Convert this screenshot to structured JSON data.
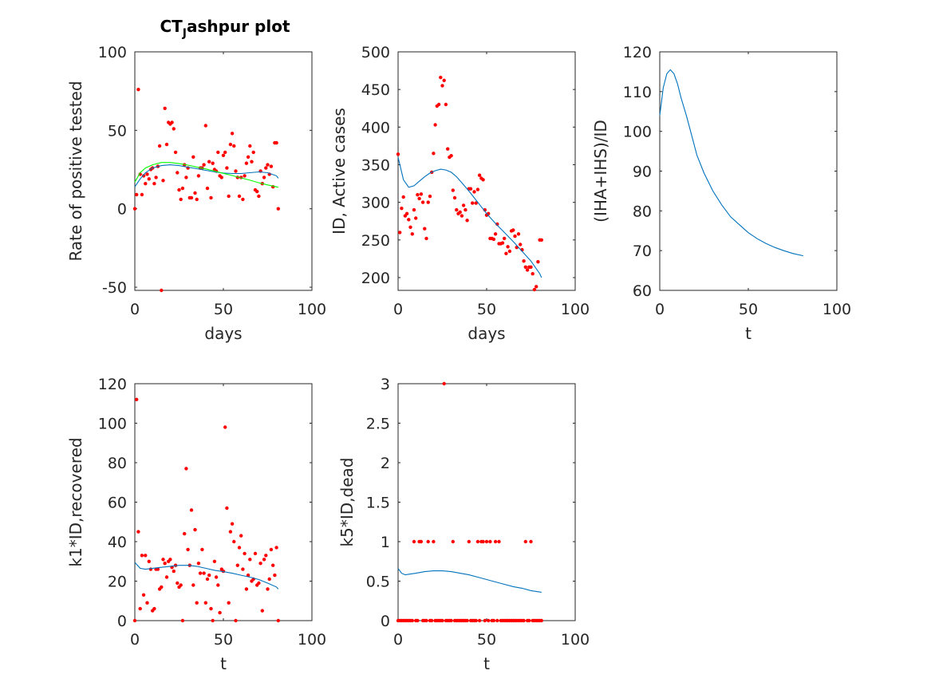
{
  "figure": {
    "title_main": "CT",
    "title_sub": "J",
    "title_rest": "ashpur plot"
  },
  "chart_data": [
    {
      "type": "scatter",
      "xlabel": "days",
      "ylabel": "Rate of positive tested",
      "xlim": [
        0,
        100
      ],
      "ylim": [
        -52,
        100
      ],
      "xticks": [
        "0",
        "50",
        "100"
      ],
      "yticks": [
        "-50",
        "0",
        "50",
        "100"
      ],
      "ytick_values": [
        -50,
        0,
        50,
        100
      ],
      "series": [
        {
          "kind": "points",
          "color": "#ff0000",
          "x": [
            0,
            1,
            2,
            3,
            4,
            5,
            6,
            7,
            8,
            9,
            10,
            11,
            12,
            13,
            14,
            15,
            16,
            17,
            18,
            19,
            20,
            21,
            22,
            23,
            24,
            25,
            26,
            27,
            28,
            29,
            30,
            31,
            32,
            33,
            34,
            35,
            36,
            37,
            38,
            39,
            40,
            41,
            42,
            43,
            44,
            45,
            46,
            47,
            48,
            49,
            50,
            51,
            52,
            53,
            54,
            55,
            56,
            57,
            58,
            59,
            60,
            61,
            62,
            63,
            64,
            65,
            66,
            67,
            68,
            69,
            70,
            71,
            72,
            73,
            74,
            75,
            76,
            77,
            78,
            79,
            80,
            81
          ],
          "y": [
            0,
            9,
            76,
            22,
            9,
            21,
            16,
            22,
            19,
            25,
            26,
            16,
            20,
            27,
            40,
            -52,
            18,
            64,
            41,
            55,
            54,
            55,
            51,
            36,
            23,
            12,
            6,
            13,
            28,
            20,
            26,
            7,
            7,
            33,
            10,
            6,
            21,
            26,
            26,
            28,
            53,
            13,
            30,
            7,
            29,
            25,
            24,
            36,
            21,
            20,
            34,
            36,
            26,
            8,
            41,
            48,
            40,
            24,
            20,
            8,
            20,
            6,
            21,
            29,
            33,
            40,
            30,
            36,
            12,
            11,
            8,
            24,
            16,
            20,
            26,
            28,
            22,
            27,
            14,
            42,
            42,
            0
          ]
        },
        {
          "kind": "line",
          "color": "#0072bd",
          "x": [
            0,
            3,
            6,
            10,
            15,
            20,
            25,
            30,
            35,
            40,
            45,
            50,
            55,
            60,
            65,
            70,
            75,
            80,
            81
          ],
          "y": [
            14,
            19,
            23,
            26,
            27.5,
            28,
            27.5,
            26.5,
            25.5,
            24.5,
            23.5,
            22.8,
            22.5,
            22.5,
            23,
            23.5,
            23,
            21,
            19.5
          ]
        },
        {
          "kind": "line",
          "color": "#00ff00",
          "x": [
            0,
            3,
            6,
            10,
            15,
            20,
            25,
            30,
            35,
            40,
            45,
            50,
            55,
            60,
            65,
            70,
            75,
            80,
            81
          ],
          "y": [
            17,
            23,
            26,
            28,
            29.5,
            29.5,
            28.8,
            27.8,
            26.6,
            25.4,
            24,
            22.6,
            21.2,
            19.7,
            18.2,
            16.6,
            15.2,
            14,
            13.7
          ]
        }
      ]
    },
    {
      "type": "scatter",
      "xlabel": "days",
      "ylabel": "ID, Active cases",
      "xlim": [
        0,
        100
      ],
      "ylim": [
        183,
        500
      ],
      "xticks": [
        "0",
        "50",
        "100"
      ],
      "yticks": [
        "200",
        "250",
        "300",
        "350",
        "400",
        "450",
        "500"
      ],
      "ytick_values": [
        200,
        250,
        300,
        350,
        400,
        450,
        500
      ],
      "series": [
        {
          "kind": "points",
          "color": "#ff0000",
          "x": [
            0,
            1,
            2,
            3,
            4,
            5,
            6,
            7,
            8,
            9,
            10,
            11,
            12,
            13,
            14,
            15,
            16,
            17,
            18,
            19,
            20,
            21,
            22,
            23,
            24,
            25,
            26,
            27,
            28,
            29,
            30,
            31,
            32,
            33,
            34,
            35,
            36,
            37,
            38,
            39,
            40,
            41,
            42,
            43,
            44,
            45,
            46,
            47,
            48,
            49,
            50,
            51,
            52,
            53,
            54,
            55,
            56,
            57,
            58,
            59,
            60,
            61,
            62,
            63,
            64,
            65,
            66,
            67,
            68,
            69,
            70,
            71,
            72,
            73,
            74,
            75,
            76,
            77,
            78,
            79,
            80,
            81
          ],
          "y": [
            364,
            260,
            292,
            307,
            282,
            285,
            277,
            267,
            258,
            290,
            279,
            310,
            305,
            311,
            300,
            265,
            252,
            300,
            308,
            340,
            365,
            403,
            428,
            430,
            466,
            455,
            462,
            430,
            371,
            360,
            362,
            316,
            306,
            290,
            285,
            287,
            282,
            296,
            290,
            276,
            318,
            318,
            299,
            314,
            299,
            317,
            336,
            332,
            330,
            290,
            283,
            285,
            252,
            252,
            251,
            258,
            271,
            245,
            245,
            246,
            252,
            232,
            241,
            235,
            262,
            263,
            255,
            240,
            258,
            244,
            237,
            222,
            214,
            210,
            214,
            214,
            205,
            184,
            188,
            221,
            250,
            250
          ]
        },
        {
          "kind": "line",
          "color": "#0072bd",
          "x": [
            0,
            3,
            6,
            9,
            12,
            15,
            18,
            21,
            24,
            27,
            30,
            33,
            36,
            40,
            45,
            50,
            55,
            60,
            65,
            70,
            75,
            80,
            81
          ],
          "y": [
            360,
            330,
            320,
            322,
            328,
            334,
            339,
            342,
            344,
            343,
            340,
            334,
            326,
            315,
            300,
            285,
            272,
            260,
            248,
            235,
            222,
            205,
            200
          ]
        }
      ]
    },
    {
      "type": "line",
      "xlabel": "t",
      "ylabel": "(IHA+IHS)/ID",
      "xlim": [
        0,
        100
      ],
      "ylim": [
        60,
        120
      ],
      "xticks": [
        "0",
        "50",
        "100"
      ],
      "yticks": [
        "60",
        "70",
        "80",
        "90",
        "100",
        "110",
        "120"
      ],
      "ytick_values": [
        60,
        70,
        80,
        90,
        100,
        110,
        120
      ],
      "series": [
        {
          "kind": "line",
          "color": "#0072bd",
          "x": [
            0,
            2,
            4,
            6,
            8,
            10,
            12,
            15,
            18,
            21,
            25,
            30,
            35,
            40,
            45,
            50,
            55,
            60,
            65,
            70,
            75,
            81
          ],
          "y": [
            104,
            111,
            114.5,
            115.5,
            114.5,
            112,
            108.5,
            104,
            99,
            94,
            89.5,
            85,
            81.5,
            78.5,
            76.5,
            74.5,
            73,
            71.8,
            70.8,
            70,
            69.3,
            68.7
          ]
        }
      ]
    },
    {
      "type": "scatter",
      "xlabel": "t",
      "ylabel": "k1*ID,recovered",
      "xlim": [
        0,
        100
      ],
      "ylim": [
        0,
        120
      ],
      "xticks": [
        "0",
        "50",
        "100"
      ],
      "yticks": [
        "0",
        "20",
        "40",
        "60",
        "80",
        "100",
        "120"
      ],
      "ytick_values": [
        0,
        20,
        40,
        60,
        80,
        100,
        120
      ],
      "series": [
        {
          "kind": "points",
          "color": "#ff0000",
          "x": [
            0,
            1,
            2,
            3,
            4,
            5,
            6,
            7,
            8,
            9,
            10,
            11,
            12,
            13,
            14,
            15,
            16,
            17,
            18,
            19,
            20,
            21,
            22,
            23,
            24,
            25,
            26,
            27,
            28,
            29,
            30,
            31,
            32,
            33,
            34,
            35,
            36,
            37,
            38,
            39,
            40,
            41,
            42,
            43,
            44,
            45,
            46,
            47,
            48,
            49,
            50,
            51,
            52,
            53,
            54,
            55,
            56,
            57,
            58,
            59,
            60,
            61,
            62,
            63,
            64,
            65,
            66,
            67,
            68,
            69,
            70,
            71,
            72,
            73,
            74,
            75,
            76,
            77,
            78,
            79,
            80,
            81
          ],
          "y": [
            0,
            112,
            45,
            6,
            33,
            13,
            33,
            9,
            30,
            26,
            5,
            6,
            26,
            26,
            16,
            17,
            31,
            29,
            22,
            30,
            31,
            27,
            25,
            28,
            19,
            17,
            18,
            0,
            44,
            77,
            36,
            28,
            56,
            18,
            46,
            9,
            29,
            24,
            36,
            24,
            9,
            21,
            23,
            6,
            0,
            30,
            22,
            18,
            4,
            26,
            25,
            98,
            57,
            9,
            45,
            49,
            40,
            0,
            28,
            37,
            43,
            26,
            34,
            16,
            23,
            31,
            20,
            21,
            34,
            18,
            19,
            29,
            5,
            31,
            33,
            16,
            21,
            36,
            28,
            23,
            37,
            0
          ]
        },
        {
          "kind": "line",
          "color": "#0072bd",
          "x": [
            0,
            3,
            6,
            10,
            15,
            20,
            25,
            30,
            35,
            40,
            45,
            50,
            55,
            60,
            65,
            70,
            75,
            80,
            81
          ],
          "y": [
            29.5,
            26.5,
            26,
            26.5,
            27,
            27.5,
            28,
            28,
            27.5,
            26.5,
            25.5,
            24.8,
            24,
            23,
            22,
            20.8,
            19,
            17,
            16
          ]
        }
      ]
    },
    {
      "type": "scatter",
      "xlabel": "t",
      "ylabel": "k5*ID,dead",
      "xlim": [
        0,
        100
      ],
      "ylim": [
        0,
        3
      ],
      "xticks": [
        "0",
        "50",
        "100"
      ],
      "yticks": [
        "0",
        "0.5",
        "1",
        "1.5",
        "2",
        "2.5",
        "3"
      ],
      "ytick_values": [
        0,
        0.5,
        1,
        1.5,
        2,
        2.5,
        3
      ],
      "series": [
        {
          "kind": "points",
          "color": "#ff0000",
          "x": [
            0,
            1,
            2,
            3,
            4,
            5,
            6,
            7,
            8,
            9,
            10,
            11,
            12,
            13,
            14,
            15,
            16,
            17,
            18,
            19,
            20,
            21,
            22,
            23,
            24,
            25,
            26,
            27,
            28,
            29,
            30,
            31,
            32,
            33,
            34,
            35,
            36,
            37,
            38,
            39,
            40,
            41,
            42,
            43,
            44,
            45,
            46,
            47,
            48,
            49,
            50,
            51,
            52,
            53,
            54,
            55,
            56,
            57,
            58,
            59,
            60,
            61,
            62,
            63,
            64,
            65,
            66,
            67,
            68,
            69,
            70,
            71,
            72,
            73,
            74,
            75,
            76,
            77,
            78,
            79,
            80,
            81
          ],
          "y": [
            0,
            0,
            0,
            0,
            0,
            0,
            0,
            0,
            0,
            1,
            0,
            0,
            1,
            1,
            0,
            0,
            0,
            1,
            0,
            0,
            1,
            0,
            0,
            0,
            0,
            0,
            3,
            0,
            0,
            0,
            0,
            1,
            0,
            0,
            0,
            0,
            0,
            0,
            0,
            0,
            1,
            0,
            0,
            0,
            0,
            1,
            0,
            1,
            1,
            0,
            1,
            0,
            1,
            0,
            0,
            1,
            0,
            1,
            0,
            0,
            0,
            0,
            0,
            0,
            0,
            0,
            0,
            0,
            0,
            0,
            0,
            0,
            1,
            0,
            0,
            1,
            0,
            0,
            0,
            0,
            0,
            0
          ]
        },
        {
          "kind": "line",
          "color": "#0072bd",
          "x": [
            0,
            2,
            4,
            7,
            10,
            15,
            20,
            25,
            30,
            35,
            40,
            45,
            50,
            55,
            60,
            65,
            70,
            75,
            81
          ],
          "y": [
            0.66,
            0.6,
            0.58,
            0.59,
            0.6,
            0.62,
            0.63,
            0.63,
            0.62,
            0.6,
            0.58,
            0.55,
            0.52,
            0.49,
            0.46,
            0.43,
            0.41,
            0.38,
            0.36
          ]
        }
      ]
    }
  ]
}
